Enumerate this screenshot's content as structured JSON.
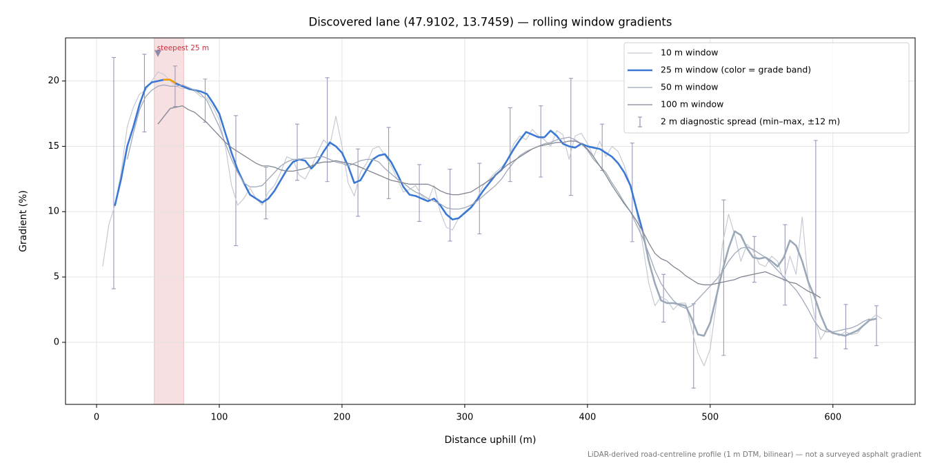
{
  "chart_data": {
    "type": "line",
    "title": "Discovered lane (47.9102, 13.7459) — rolling window gradients",
    "x_label": "Distance uphill (m)",
    "y_label": "Gradient (%)",
    "footnote": "LiDAR-derived road-centreline profile (1 m DTM, bilinear) — not a surveyed asphalt gradient",
    "xlim": [
      -25.3,
      667
    ],
    "ylim": [
      -4.75,
      23.3
    ],
    "xticks": [
      0,
      100,
      200,
      300,
      400,
      500,
      600
    ],
    "yticks": [
      0,
      5,
      10,
      15,
      20
    ],
    "grid": true,
    "legend": "upper right",
    "x": [
      5,
      10,
      15,
      20,
      25,
      30,
      35,
      40,
      45,
      50,
      55,
      60,
      65,
      70,
      75,
      80,
      85,
      90,
      95,
      100,
      105,
      110,
      115,
      120,
      125,
      130,
      135,
      140,
      145,
      150,
      155,
      160,
      165,
      170,
      175,
      180,
      185,
      190,
      195,
      200,
      205,
      210,
      215,
      220,
      225,
      230,
      235,
      240,
      245,
      250,
      255,
      260,
      265,
      270,
      275,
      280,
      285,
      290,
      295,
      300,
      305,
      310,
      315,
      320,
      325,
      330,
      335,
      340,
      345,
      350,
      355,
      360,
      365,
      370,
      375,
      380,
      385,
      390,
      395,
      400,
      405,
      410,
      415,
      420,
      425,
      430,
      435,
      440,
      445,
      450,
      455,
      460,
      465,
      470,
      475,
      480,
      485,
      490,
      495,
      500,
      505,
      510,
      515,
      520,
      525,
      530,
      535,
      540,
      545,
      550,
      555,
      560,
      565,
      570,
      575,
      580,
      585,
      590,
      595,
      600,
      605,
      610,
      615,
      620,
      625,
      630,
      635,
      640
    ],
    "series": [
      {
        "name": "10 m window",
        "color": "#c5cad2",
        "width": 1.2,
        "values": [
          5.8,
          9,
          10.5,
          13,
          16.5,
          18,
          19,
          19.3,
          20,
          20.7,
          20.5,
          20,
          19.6,
          19.4,
          19.5,
          19.2,
          18.8,
          18.7,
          18,
          17,
          15,
          12,
          10.5,
          11,
          11.8,
          11,
          10.5,
          11.5,
          12,
          13,
          14.2,
          14,
          12.8,
          12.5,
          13.4,
          14.5,
          15.5,
          15,
          17.3,
          15,
          12.2,
          11.2,
          13,
          13.7,
          14.8,
          15,
          14.3,
          13.5,
          12.5,
          11.5,
          11.7,
          12,
          11.2,
          10.8,
          12,
          10,
          8.8,
          8.6,
          9.5,
          10,
          10.4,
          11,
          12,
          12.5,
          13,
          13.4,
          14,
          15.2,
          15.8,
          15.5,
          16.3,
          15.8,
          15.5,
          15,
          16.2,
          15.9,
          14,
          15.8,
          16,
          15.2,
          14.2,
          15.4,
          14.2,
          15,
          14.6,
          13.5,
          12,
          10,
          7.5,
          4.5,
          2.8,
          3.5,
          3.2,
          2.5,
          3,
          3,
          1,
          -0.8,
          -1.8,
          -0.5,
          3,
          7.5,
          9.8,
          8.2,
          6.2,
          7.5,
          7,
          6,
          5.8,
          6.6,
          6.2,
          4.7,
          6.6,
          5.2,
          9.6,
          4.5,
          2,
          0.2,
          1,
          0.8,
          0.5,
          0.8,
          0.6,
          0.7,
          1.3,
          1.7,
          2.1,
          1.8
        ]
      },
      {
        "name": "25 m window (color = grade band)",
        "color": "#3a78d4",
        "width": 2.6,
        "grade_bands": [
          {
            "max": 9,
            "color": "#9aa8b8"
          },
          {
            "max": 20,
            "color": "#3a78d4"
          },
          {
            "color": "#f09a00"
          }
        ],
        "values": [
          null,
          null,
          10.5,
          12.5,
          15,
          16.5,
          18.2,
          19.5,
          19.9,
          20,
          20.1,
          20.1,
          19.8,
          19.6,
          19.4,
          19.3,
          19.2,
          19,
          18.3,
          17.5,
          16,
          14.5,
          13.2,
          12.2,
          11.3,
          11,
          10.7,
          11,
          11.6,
          12.4,
          13.2,
          13.8,
          14,
          13.9,
          13.3,
          13.8,
          14.6,
          15.3,
          15,
          14.5,
          13.5,
          12.2,
          12.4,
          13.2,
          14,
          14.3,
          14.4,
          13.8,
          12.9,
          11.9,
          11.3,
          11.2,
          11,
          10.8,
          11,
          10.5,
          9.8,
          9.4,
          9.5,
          9.9,
          10.3,
          10.9,
          11.6,
          12.2,
          12.8,
          13.2,
          14,
          14.8,
          15.5,
          16.1,
          15.9,
          15.7,
          15.7,
          16.2,
          15.8,
          15.2,
          15,
          14.9,
          15.2,
          15,
          14.9,
          14.8,
          14.5,
          14.2,
          13.7,
          13,
          12,
          10.2,
          8.5,
          6.2,
          4.5,
          3.2,
          3,
          3,
          2.9,
          2.8,
          1.8,
          0.6,
          0.5,
          1.5,
          3.5,
          5.5,
          7.2,
          8.5,
          8.2,
          7.2,
          6.5,
          6.4,
          6.5,
          6.2,
          5.8,
          6.5,
          7.8,
          7.4,
          6.2,
          4.6,
          3.5,
          2.1,
          1,
          0.7,
          0.6,
          0.5,
          0.7,
          0.9,
          1.3,
          1.7,
          1.8,
          null
        ]
      },
      {
        "name": "50 m window",
        "color": "#9ea8b8",
        "width": 1.3,
        "values": [
          null,
          null,
          null,
          null,
          14,
          16,
          17.8,
          18.8,
          19.3,
          19.6,
          19.7,
          19.6,
          19.6,
          19.7,
          19.5,
          19.3,
          19,
          18.5,
          17.5,
          16.5,
          15.2,
          14,
          13,
          12.2,
          11.9,
          11.9,
          12,
          12.5,
          13,
          13.5,
          13.8,
          14,
          14,
          14.1,
          14.1,
          14.2,
          14.2,
          14,
          13.8,
          13.7,
          13.5,
          13.7,
          13.9,
          14,
          14,
          13.8,
          13.3,
          12.9,
          12.5,
          12.2,
          11.8,
          11.5,
          11.3,
          11,
          10.8,
          10.6,
          10.3,
          10.2,
          10.2,
          10.3,
          10.5,
          10.8,
          11.2,
          11.6,
          12,
          12.5,
          13.2,
          13.8,
          14.3,
          14.6,
          14.8,
          15,
          15.2,
          15.3,
          15.5,
          15.6,
          15.7,
          15.5,
          15.2,
          14.7,
          14,
          13.5,
          13,
          12.2,
          11.5,
          10.7,
          10,
          9,
          8,
          6.8,
          5.5,
          4.5,
          3.8,
          3.2,
          2.8,
          2.6,
          2.8,
          3.3,
          3.8,
          4.3,
          4.8,
          5.4,
          6.2,
          6.8,
          7.2,
          7.3,
          7.1,
          6.8,
          6.5,
          6,
          5.5,
          5,
          4.5,
          4,
          3.3,
          2.5,
          1.6,
          1,
          0.8,
          0.8,
          0.9,
          1,
          1.1,
          1.3,
          1.6,
          1.8,
          null,
          null
        ]
      },
      {
        "name": "100 m window",
        "color": "#7f8591",
        "width": 1.3,
        "values": [
          null,
          null,
          null,
          null,
          null,
          null,
          null,
          null,
          null,
          16.7,
          17.3,
          17.9,
          18,
          18.1,
          17.8,
          17.6,
          17.2,
          16.8,
          16.3,
          15.8,
          15.3,
          14.9,
          14.6,
          14.3,
          14,
          13.7,
          13.5,
          13.5,
          13.4,
          13.2,
          13.1,
          13.1,
          13.2,
          13.3,
          13.5,
          13.7,
          13.8,
          13.8,
          13.9,
          13.8,
          13.7,
          13.6,
          13.4,
          13.2,
          13,
          12.8,
          12.6,
          12.4,
          12.3,
          12.2,
          12.1,
          12.1,
          12.1,
          12.1,
          11.9,
          11.6,
          11.4,
          11.3,
          11.3,
          11.4,
          11.5,
          11.8,
          12.1,
          12.4,
          12.8,
          13.2,
          13.6,
          13.9,
          14.2,
          14.5,
          14.8,
          15,
          15.1,
          15.2,
          15.3,
          15.3,
          15.4,
          15.4,
          15.2,
          14.8,
          14.2,
          13.5,
          12.8,
          12,
          11.3,
          10.6,
          10,
          9.3,
          8.5,
          7.6,
          6.8,
          6.4,
          6.2,
          5.8,
          5.5,
          5.1,
          4.8,
          4.5,
          4.4,
          4.4,
          4.5,
          4.6,
          4.7,
          4.8,
          5,
          5.1,
          5.2,
          5.3,
          5.4,
          5.2,
          5,
          4.8,
          4.6,
          4.5,
          4.2,
          3.9,
          3.7,
          3.4,
          null,
          null,
          null,
          null,
          null,
          null,
          null,
          null,
          null,
          null
        ]
      }
    ],
    "errorbars": {
      "name": "2 m diagnostic spread (min–max, ±12 m)",
      "color": "#9b97b8",
      "x": [
        14,
        39,
        64,
        88.5,
        113.5,
        138,
        163.5,
        188,
        213,
        238,
        263,
        288,
        312,
        337,
        362,
        386.5,
        412,
        436.5,
        462,
        486.5,
        511,
        536,
        561,
        586,
        610.5,
        635.5
      ],
      "low": [
        4.1,
        16.1,
        18.05,
        16.85,
        7.4,
        9.45,
        12.4,
        12.3,
        9.65,
        11,
        9.25,
        7.75,
        8.3,
        12.3,
        12.65,
        11.25,
        13.15,
        7.7,
        1.55,
        -3.5,
        -1,
        4.6,
        2.85,
        -1.2,
        -0.5,
        -0.25
      ],
      "high": [
        21.8,
        22.05,
        21.15,
        20.15,
        17.35,
        13.4,
        16.7,
        20.25,
        14.8,
        16.45,
        13.6,
        13.25,
        13.7,
        17.95,
        18.1,
        20.2,
        16.7,
        15.25,
        5.2,
        2.95,
        10.9,
        8.1,
        9,
        15.45,
        2.9,
        2.8
      ]
    },
    "steepest": {
      "label": "steepest 25 m",
      "x0": 47,
      "x1": 71,
      "marker_x": 50,
      "marker_y": 22.1,
      "color": "#c8303c"
    }
  }
}
